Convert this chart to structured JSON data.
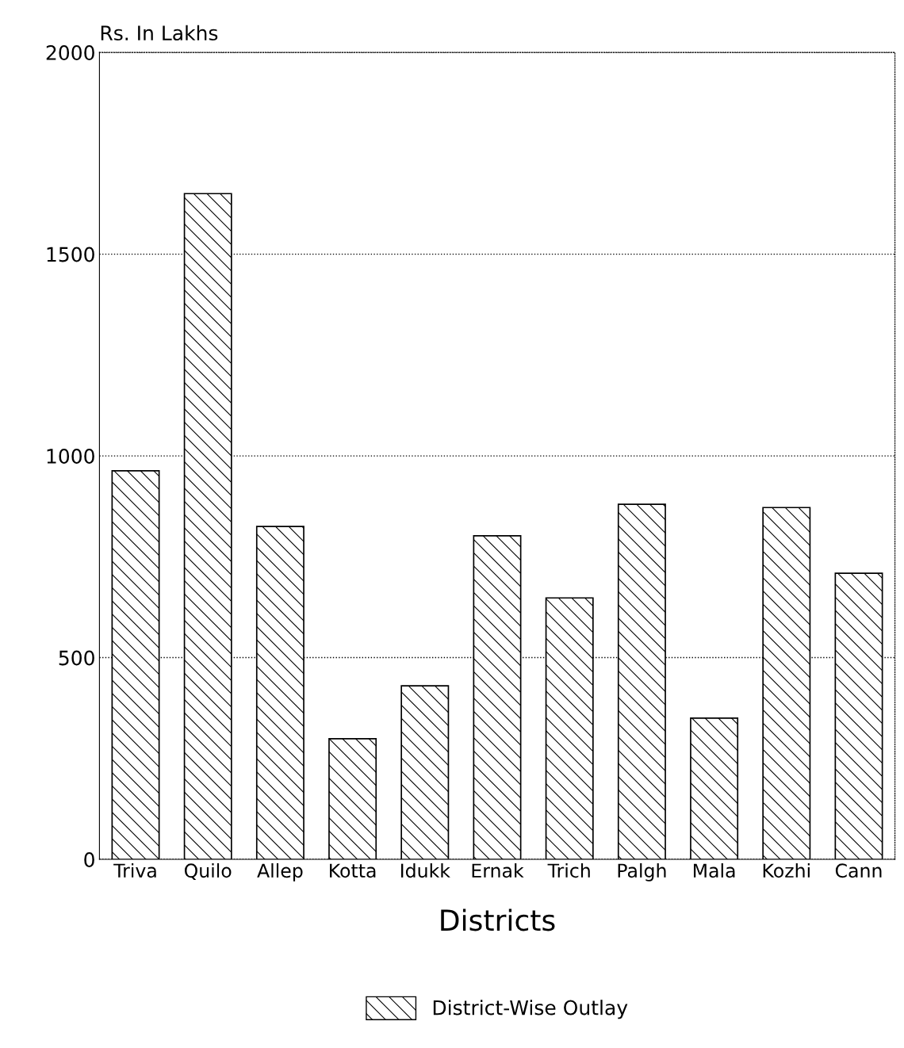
{
  "chart_data": {
    "type": "bar",
    "ylabel": "Rs. In Lakhs",
    "xlabel": "Districts",
    "categories": [
      "Triva",
      "Quilo",
      "Allep",
      "Kotta",
      "Idukk",
      "Ernak",
      "Trich",
      "Palgh",
      "Mala",
      "Kozhi",
      "Cann"
    ],
    "series": [
      {
        "name": "District-Wise Outlay",
        "color": "#000000",
        "values": [
          963,
          1650,
          825,
          299,
          430,
          802,
          648,
          880,
          350,
          872,
          709
        ]
      }
    ],
    "ylim": [
      0,
      2000
    ],
    "yticks": [
      0,
      500,
      1000,
      1500,
      2000
    ],
    "grid": "y",
    "legend": "bottom"
  }
}
